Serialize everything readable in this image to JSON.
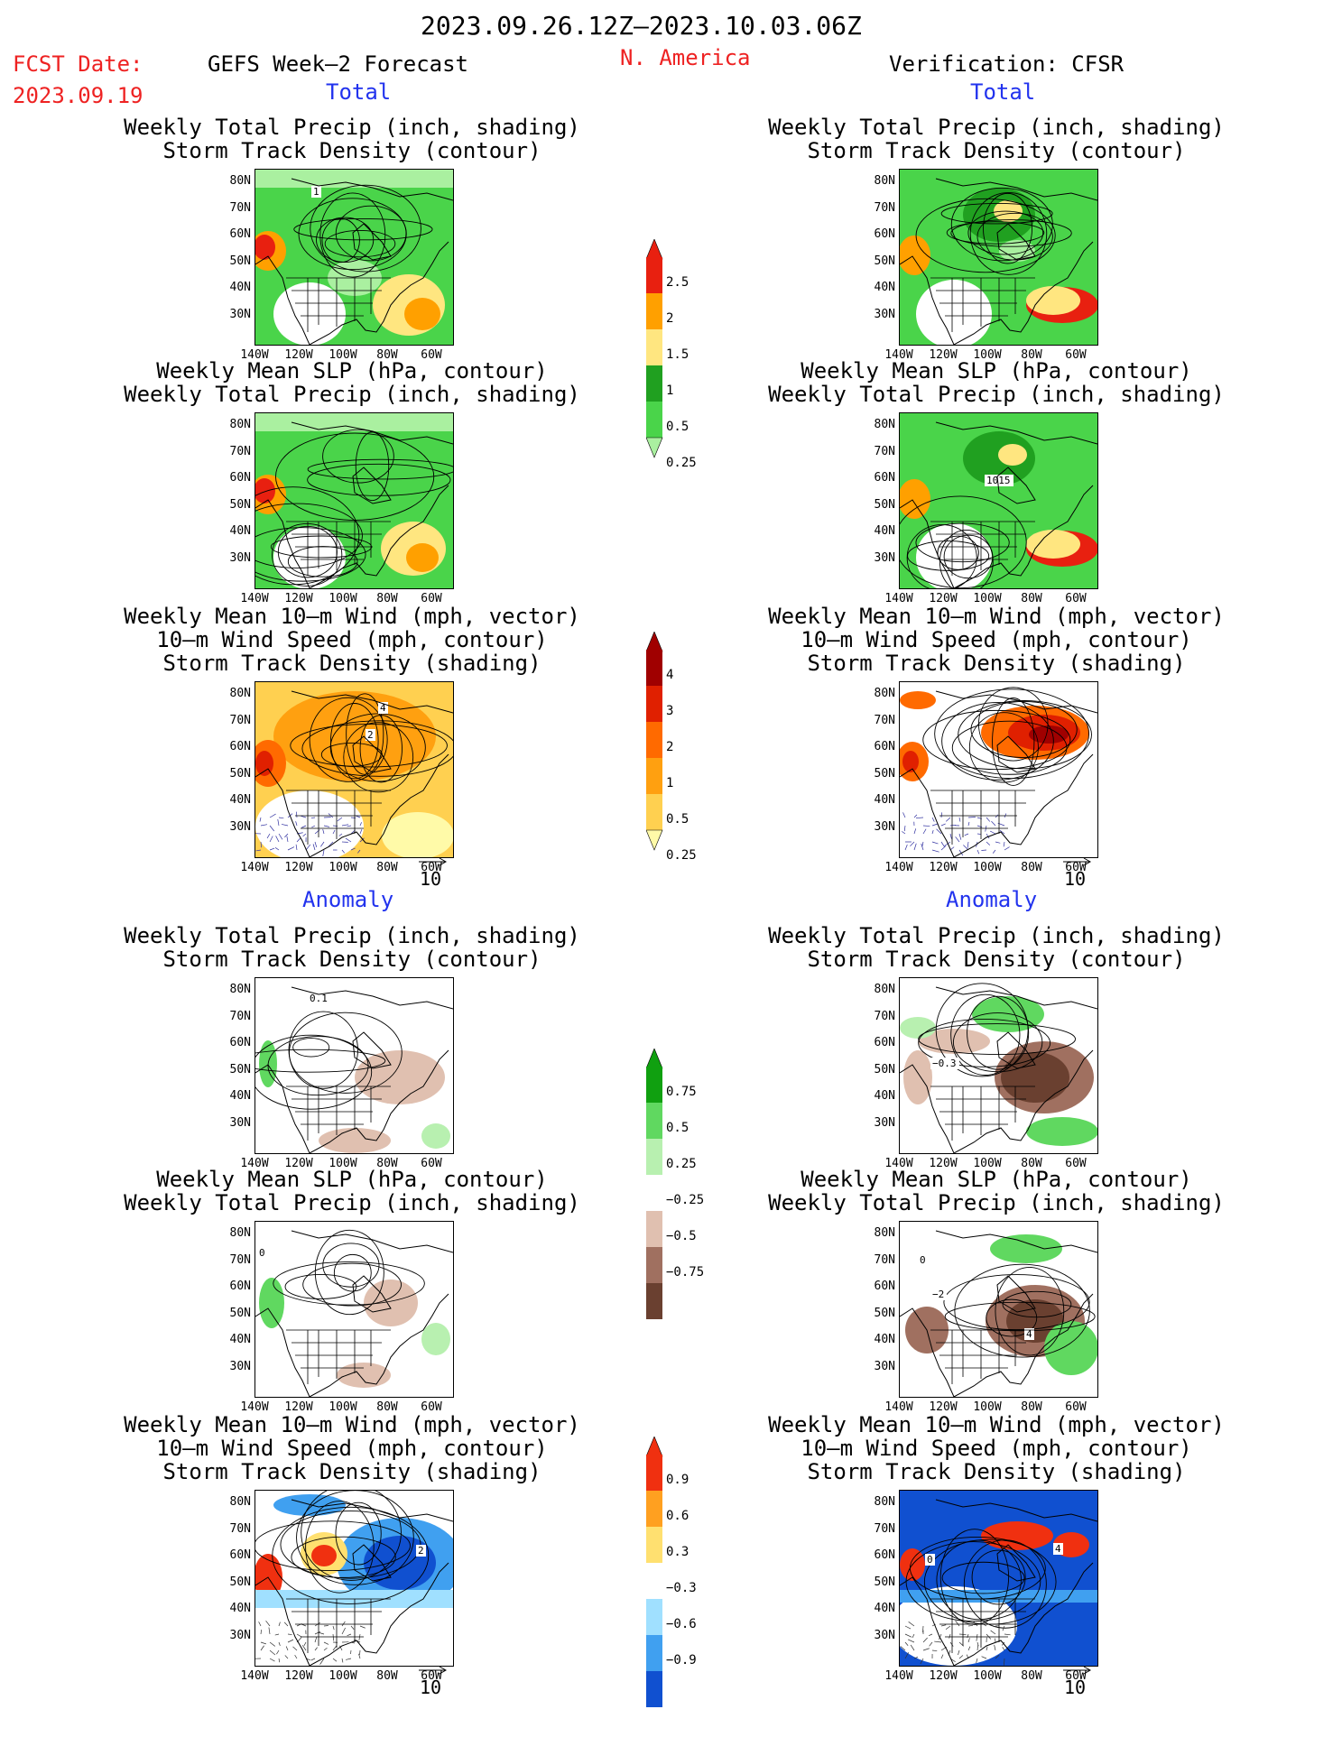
{
  "header": {
    "date_range": "2023.09.26.12Z–2023.10.03.06Z",
    "fcst_label": "FCST Date:",
    "fcst_date": "2023.09.19",
    "model_title": "GEFS Week–2 Forecast",
    "region": "N. America",
    "verification": "Verification: CFSR"
  },
  "sections": {
    "total": "Total",
    "anomaly": "Anomaly"
  },
  "panel_titles": {
    "precip_track": [
      "Weekly Total Precip (inch, shading)",
      "Storm Track Density (contour)"
    ],
    "slp_precip": [
      "Weekly Mean SLP (hPa, contour)",
      "Weekly Total Precip (inch, shading)"
    ],
    "wind_track": [
      "Weekly Mean 10–m Wind (mph, vector)",
      "10–m Wind Speed (mph, contour)",
      "Storm Track Density (shading)"
    ]
  },
  "axes": {
    "lat_labels": [
      "80N",
      "70N",
      "60N",
      "50N",
      "40N",
      "30N"
    ],
    "lon_labels": [
      "140W",
      "120W",
      "100W",
      "80W",
      "60W"
    ]
  },
  "vector_ref": "10",
  "colorbars": {
    "precip_total": [
      "2.5",
      "2",
      "1.5",
      "1",
      "0.5",
      "0.25"
    ],
    "track_total": [
      "4",
      "3",
      "2",
      "1",
      "0.5",
      "0.25"
    ],
    "precip_anom": [
      "0.75",
      "0.5",
      "0.25",
      "−0.25",
      "−0.5",
      "−0.75"
    ],
    "track_anom": [
      "0.9",
      "0.6",
      "0.3",
      "−0.3",
      "−0.6",
      "−0.9"
    ]
  },
  "contour_labels": {
    "f_precip_total": "1",
    "v_slp_total": "1015",
    "f_wind_total_a": "4",
    "f_wind_total_b": "2",
    "f_precip_anom": "0.1",
    "v_precip_anom": "−0.3",
    "f_slp_anom": "0",
    "v_slp_anom_a": "0",
    "v_slp_anom_b": "−2",
    "v_slp_anom_c": "4",
    "f_wind_anom": "2",
    "v_wind_anom_a": "0",
    "v_wind_anom_b": "4"
  },
  "colors": {
    "red_text": "#ee2222",
    "blue_text": "#2233ee",
    "precip_total": [
      "#aaf0a0",
      "#4ad44a",
      "#20a020",
      "#ffe680",
      "#ffa000",
      "#e82010"
    ],
    "track_total": [
      "#fffaa8",
      "#ffd050",
      "#ffa010",
      "#ff6a00",
      "#e02000",
      "#a00000"
    ],
    "precip_anom": [
      "#6a4030",
      "#a07060",
      "#e0c0b0",
      "#ffffff",
      "#b8f0b0",
      "#60d860",
      "#10a010"
    ],
    "track_anom": [
      "#1050d0",
      "#40a0f0",
      "#a0e0ff",
      "#ffffff",
      "#ffe070",
      "#ffa020",
      "#f03010"
    ]
  }
}
